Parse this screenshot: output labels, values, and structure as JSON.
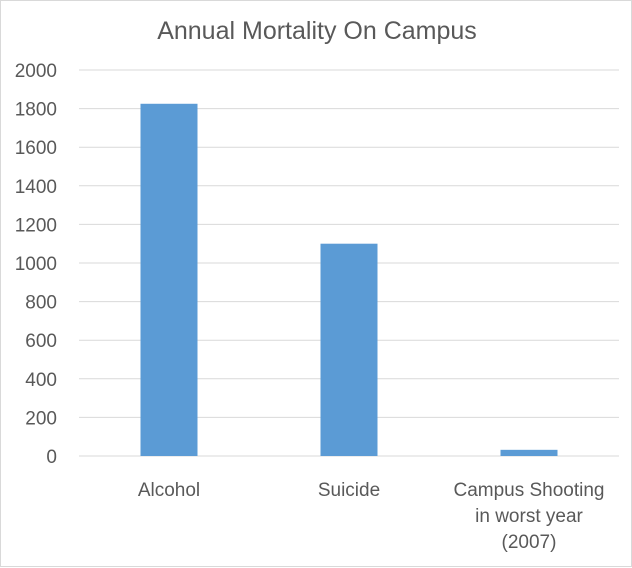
{
  "chart_data": {
    "type": "bar",
    "title": "Annual Mortality On Campus",
    "categories": [
      [
        "Alcohol"
      ],
      [
        "Suicide"
      ],
      [
        "Campus Shooting",
        "in worst year",
        "(2007)"
      ]
    ],
    "values": [
      1825,
      1100,
      32
    ],
    "xlabel": "",
    "ylabel": "",
    "ylim": [
      0,
      2000
    ],
    "yticks": [
      "0",
      "200",
      "400",
      "600",
      "800",
      "1000",
      "1200",
      "1400",
      "1600",
      "1800",
      "2000"
    ],
    "grid": true,
    "legend": "none",
    "bar_color": "#5b9bd5",
    "grid_color": "#d9d9d9"
  }
}
